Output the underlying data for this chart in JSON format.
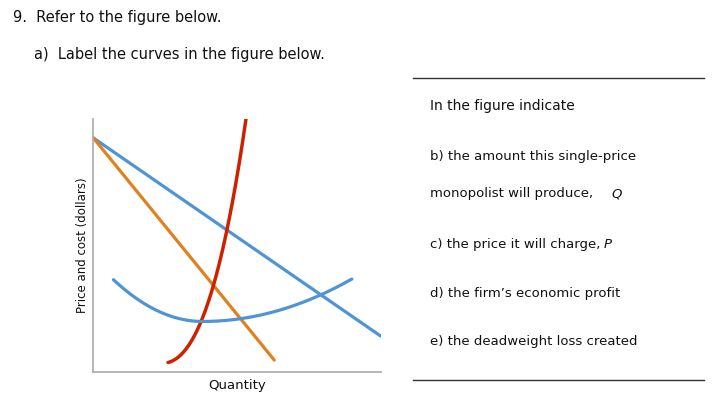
{
  "title_main": "9.  Refer to the figure below.",
  "subtitle_a": "a)  Label the curves in the figure below.",
  "ylabel": "Price and cost (dollars)",
  "xlabel": "Quantity",
  "box_title": "In the figure indicate",
  "box_line_b1": "b) the amount this single-price",
  "box_line_b2": "monopolist will produce, ",
  "box_line_b2_italic": "Q",
  "box_line_c1": "c) the price it will charge, ",
  "box_line_c1_italic": "P",
  "box_line_d": "d) the firm’s economic profit",
  "box_line_e": "e) the deadweight loss created",
  "color_demand": "#4f94d4",
  "color_mr": "#e08020",
  "color_mc": "#cc2200",
  "color_atc": "#4f94d4",
  "bg": "#ffffff",
  "text_color": "#111111",
  "axis_color": "#aaaaaa",
  "box_border_color": "#333333"
}
